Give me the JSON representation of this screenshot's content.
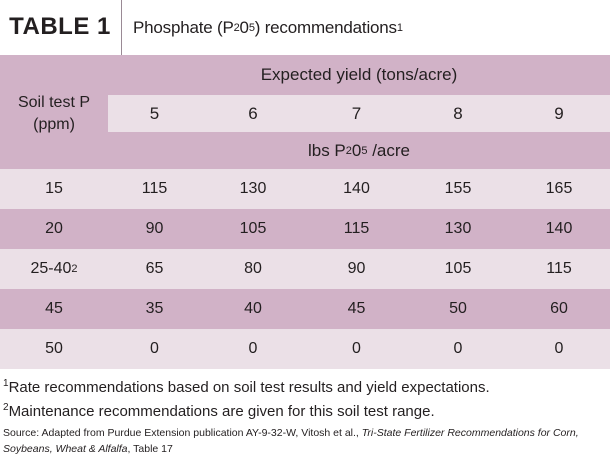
{
  "title": {
    "label": "TABLE 1",
    "text_main": "Phosphate (P",
    "text_sub": "2",
    "text_mid": "0",
    "text_sub2": "5",
    "text_end": ") recommendations",
    "text_sup": "1"
  },
  "header": {
    "row_header_line1": "Soil test P",
    "row_header_line2": "(ppm)",
    "group_label": "Expected yield (tons/acre)",
    "yields": [
      "5",
      "6",
      "7",
      "8",
      "9"
    ],
    "unit_pre": "lbs P",
    "unit_sub": "2",
    "unit_mid": "0",
    "unit_sub2": "5",
    "unit_end": " /acre"
  },
  "rows": [
    {
      "soil": "15",
      "sup": "",
      "values": [
        "115",
        "130",
        "140",
        "155",
        "165"
      ]
    },
    {
      "soil": "20",
      "sup": "",
      "values": [
        "90",
        "105",
        "115",
        "130",
        "140"
      ]
    },
    {
      "soil": "25-40",
      "sup": "2",
      "values": [
        "65",
        "80",
        "90",
        "105",
        "115"
      ]
    },
    {
      "soil": "45",
      "sup": "",
      "values": [
        "35",
        "40",
        "45",
        "50",
        "60"
      ]
    },
    {
      "soil": "50",
      "sup": "",
      "values": [
        "0",
        "0",
        "0",
        "0",
        "0"
      ]
    }
  ],
  "footnotes": {
    "fn1_mark": "1",
    "fn1_text": "Rate recommendations based on soil test results and yield expectations.",
    "fn2_mark": "2",
    "fn2_text": "Maintenance recommendations are given for this soil test range.",
    "source_pre": "Source: Adapted from Purdue Extension publication AY-9-32-W, Vitosh et al., ",
    "source_italic": "Tri-State Fertilizer Recommendations for Corn, Soybeans, Wheat & Alfalfa",
    "source_post": ", Table 17"
  },
  "colors": {
    "header_band": "#d1b2c7",
    "light_band": "#ebe0e7",
    "text": "#231f20"
  }
}
